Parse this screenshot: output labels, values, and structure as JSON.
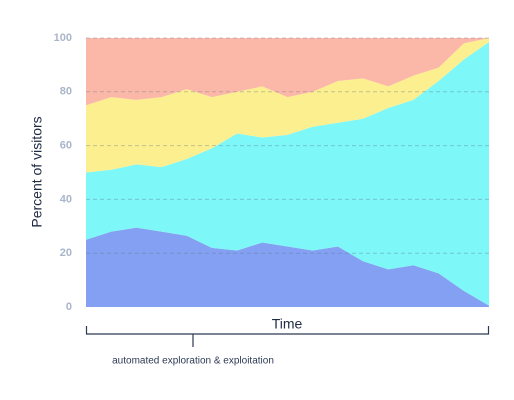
{
  "chart_data": {
    "type": "area",
    "stacked": true,
    "x_label": "Time",
    "y_label": "Percent of visitors",
    "annotation": "automated exploration & exploitation",
    "categories": [
      null,
      null,
      null,
      null,
      null,
      null,
      null,
      null,
      null,
      null,
      null,
      null,
      null,
      null,
      null,
      null,
      null
    ],
    "series": [
      {
        "color": "#84a0f2",
        "values": [
          25,
          28,
          29.5,
          28,
          26.5,
          22,
          21,
          24,
          22.5,
          21,
          22.5,
          17,
          14,
          15.5,
          12.5,
          6,
          0.5
        ]
      },
      {
        "color": "#7df7f7",
        "values": [
          25,
          23,
          23.5,
          24,
          28.5,
          37,
          43.5,
          39,
          41.5,
          46,
          46,
          53,
          60,
          61.5,
          71.5,
          86,
          98
        ]
      },
      {
        "color": "#fcef8f",
        "values": [
          25,
          27,
          24,
          26,
          26,
          19,
          15.5,
          19,
          14,
          13,
          15.5,
          15,
          8,
          9,
          5,
          6,
          1.5
        ]
      },
      {
        "color": "#fbb8a8",
        "values": [
          25,
          22,
          23,
          22,
          19,
          22,
          20,
          18,
          22,
          20,
          16,
          15,
          18,
          14,
          11,
          2,
          0
        ]
      }
    ],
    "ylim": [
      0,
      100
    ],
    "yticks": [
      0,
      20,
      40,
      60,
      80,
      100
    ],
    "grid": true
  }
}
